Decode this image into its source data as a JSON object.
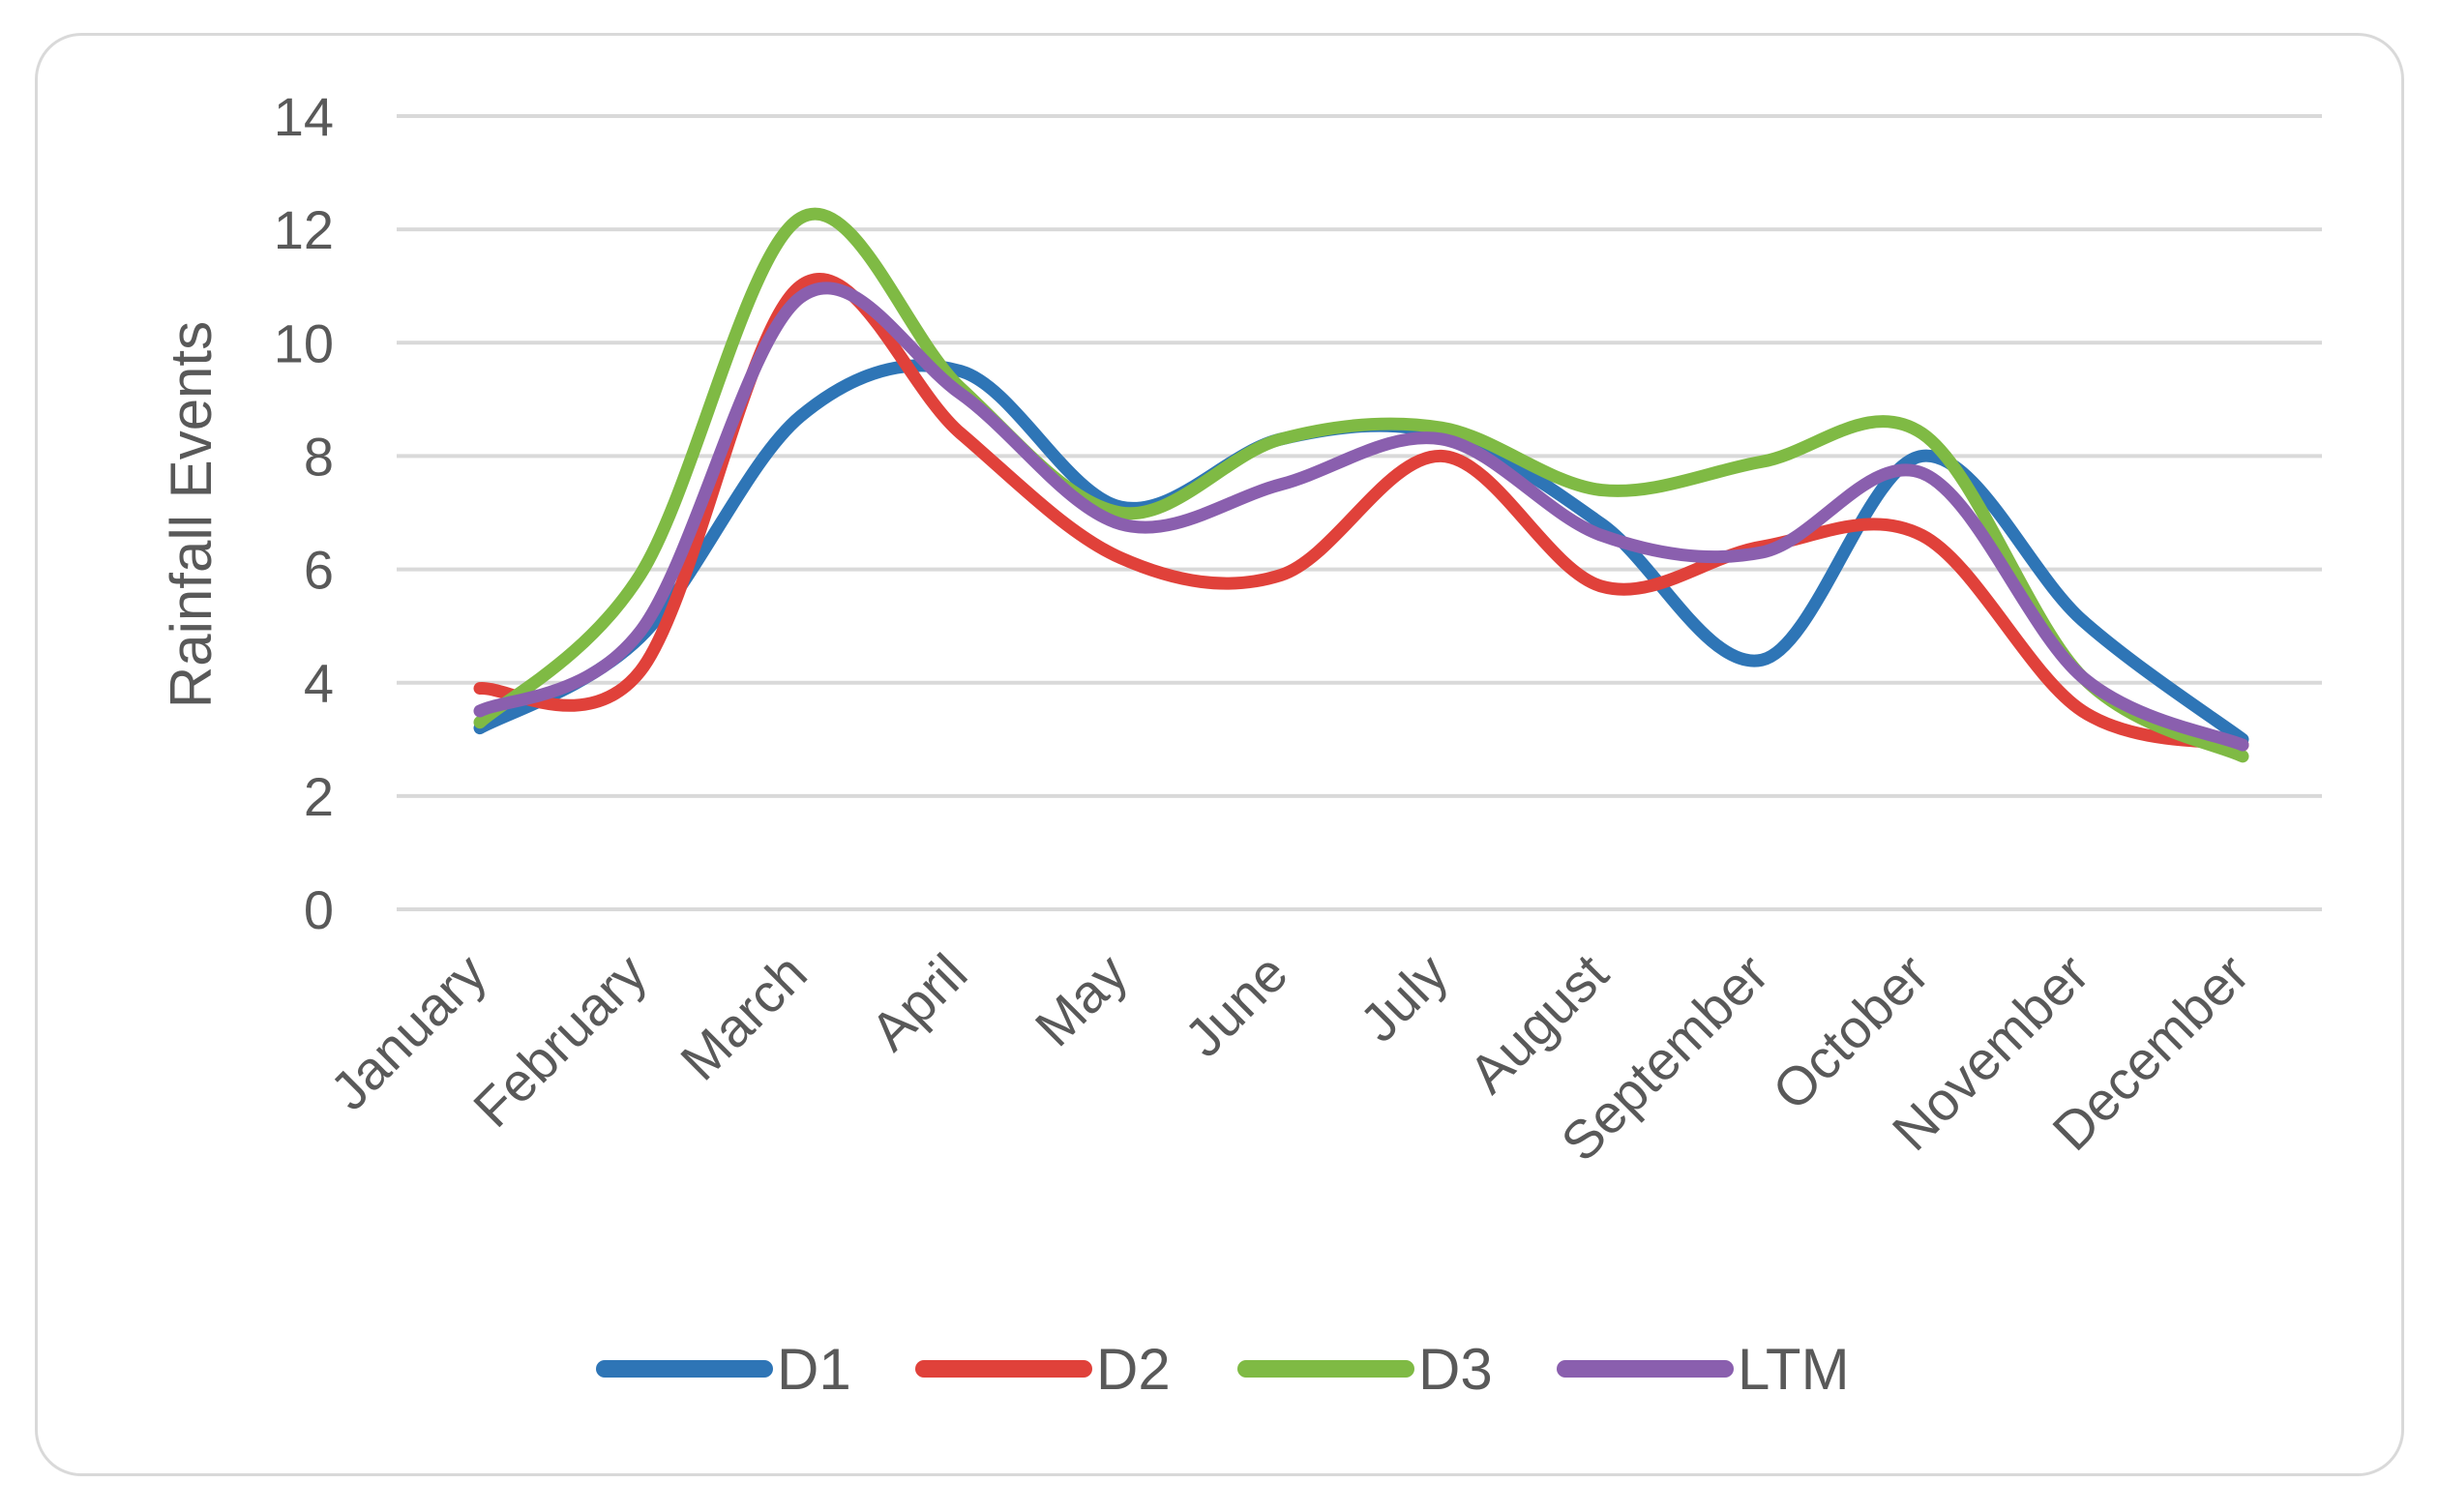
{
  "chart_data": {
    "type": "line",
    "title": "",
    "xlabel": "",
    "ylabel": "Rainfall Events",
    "ylim": [
      0,
      14
    ],
    "yticks": [
      0,
      2,
      4,
      6,
      8,
      10,
      12,
      14
    ],
    "grid": true,
    "legend_position": "bottom",
    "smooth": true,
    "categories": [
      "January",
      "February",
      "March",
      "April",
      "May",
      "June",
      "July",
      "August",
      "September",
      "October",
      "November",
      "December"
    ],
    "series": [
      {
        "name": "D1",
        "color": "#2e75b6",
        "values": [
          3.2,
          4.8,
          8.7,
          9.5,
          7.1,
          8.3,
          8.4,
          6.8,
          4.4,
          8.0,
          5.1,
          3.0
        ]
      },
      {
        "name": "D2",
        "color": "#e0413a",
        "values": [
          3.9,
          4.2,
          11.0,
          8.4,
          6.2,
          5.9,
          8.0,
          5.7,
          6.4,
          6.6,
          3.5,
          2.9
        ]
      },
      {
        "name": "D3",
        "color": "#7fba44",
        "values": [
          3.3,
          5.9,
          12.2,
          9.2,
          7.0,
          8.3,
          8.5,
          7.4,
          7.9,
          8.4,
          4.1,
          2.7
        ]
      },
      {
        "name": "LTM",
        "color": "#8a5fae",
        "values": [
          3.5,
          4.9,
          10.8,
          9.1,
          6.8,
          7.5,
          8.3,
          6.6,
          6.3,
          7.7,
          4.1,
          2.9
        ]
      }
    ]
  }
}
